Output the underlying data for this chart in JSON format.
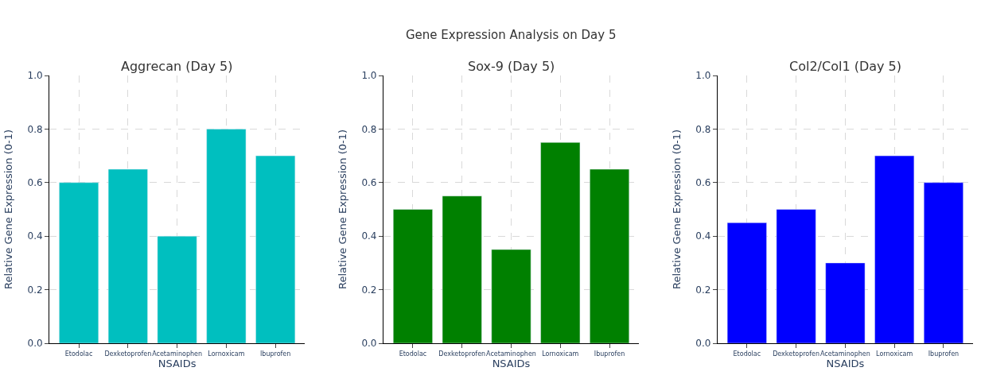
{
  "chart_data": [
    {
      "type": "bar",
      "title": "Aggrecan (Day 5)",
      "xlabel": "NSAIDs",
      "ylabel": "Relative Gene Expression (0-1)",
      "annotations": [
        "Gene Expression Analysis on Day 5"
      ],
      "categories": [
        "Etodolac",
        "Dexketoprofen",
        "Acetaminophen",
        "Lornoxicam",
        "Ibuprofen"
      ],
      "values": [
        0.6,
        0.65,
        0.4,
        0.8,
        0.7
      ],
      "color": "#00bfbf",
      "ylim": [
        0,
        1
      ],
      "yticks": [
        {
          "value": 0,
          "label": "0.0"
        },
        {
          "value": 0.2,
          "label": "0.2"
        },
        {
          "value": 0.4,
          "label": "0.4"
        },
        {
          "value": 0.6,
          "label": "0.6"
        },
        {
          "value": 0.8,
          "label": "0.8"
        },
        {
          "value": 1,
          "label": "1.0"
        }
      ],
      "grid": true
    },
    {
      "type": "bar",
      "title": "Sox-9 (Day 5)",
      "xlabel": "NSAIDs",
      "ylabel": "Relative Gene Expression (0-1)",
      "categories": [
        "Etodolac",
        "Dexketoprofen",
        "Acetaminophen",
        "Lornoxicam",
        "Ibuprofen"
      ],
      "values": [
        0.5,
        0.55,
        0.35,
        0.75,
        0.65
      ],
      "color": "#008000",
      "ylim": [
        0,
        1
      ],
      "yticks": [
        {
          "value": 0,
          "label": "0.0"
        },
        {
          "value": 0.2,
          "label": "0.2"
        },
        {
          "value": 0.4,
          "label": "0.4"
        },
        {
          "value": 0.6,
          "label": "0.6"
        },
        {
          "value": 0.8,
          "label": "0.8"
        },
        {
          "value": 1,
          "label": "1.0"
        }
      ],
      "grid": true
    },
    {
      "type": "bar",
      "title": "Col2/Col1 (Day 5)",
      "xlabel": "NSAIDs",
      "ylabel": "Relative Gene Expression (0-1)",
      "categories": [
        "Etodolac",
        "Dexketoprofen",
        "Acetaminophen",
        "Lornoxicam",
        "Ibuprofen"
      ],
      "values": [
        0.45,
        0.5,
        0.3,
        0.7,
        0.6
      ],
      "color": "#0000ff",
      "ylim": [
        0,
        1
      ],
      "yticks": [
        {
          "value": 0,
          "label": "0.0"
        },
        {
          "value": 0.2,
          "label": "0.2"
        },
        {
          "value": 0.4,
          "label": "0.4"
        },
        {
          "value": 0.6,
          "label": "0.6"
        },
        {
          "value": 0.8,
          "label": "0.8"
        },
        {
          "value": 1,
          "label": "1.0"
        }
      ],
      "grid": true
    }
  ]
}
